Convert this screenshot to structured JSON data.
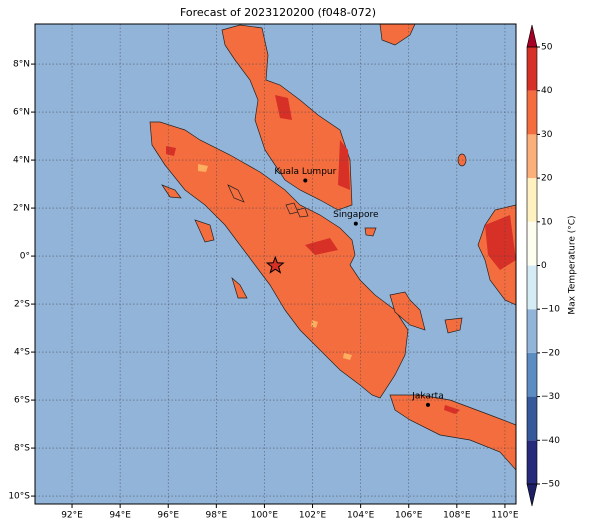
{
  "title": "Forecast of 2023120200 (f048-072)",
  "map": {
    "xlim": [
      90.46,
      110.46
    ],
    "ylim": [
      -10.33,
      9.67
    ],
    "ocean_color": "#92b4d8",
    "grid": true,
    "xticks": [
      {
        "value": 92,
        "label": "92°E"
      },
      {
        "value": 94,
        "label": "94°E"
      },
      {
        "value": 96,
        "label": "96°E"
      },
      {
        "value": 98,
        "label": "98°E"
      },
      {
        "value": 100,
        "label": "100°E"
      },
      {
        "value": 102,
        "label": "102°E"
      },
      {
        "value": 104,
        "label": "104°E"
      },
      {
        "value": 106,
        "label": "106°E"
      },
      {
        "value": 108,
        "label": "108°E"
      },
      {
        "value": 110,
        "label": "110°E"
      }
    ],
    "yticks": [
      {
        "value": 8,
        "label": "8°N"
      },
      {
        "value": 6,
        "label": "6°N"
      },
      {
        "value": 4,
        "label": "4°N"
      },
      {
        "value": 2,
        "label": "2°N"
      },
      {
        "value": 0,
        "label": "0°"
      },
      {
        "value": -2,
        "label": "2°S"
      },
      {
        "value": -4,
        "label": "4°S"
      },
      {
        "value": -6,
        "label": "6°S"
      },
      {
        "value": -8,
        "label": "8°S"
      },
      {
        "value": -10,
        "label": "10°S"
      }
    ],
    "cities": [
      {
        "name": "Kuala Lumpur",
        "lon": 101.7,
        "lat": 3.15
      },
      {
        "name": "Singapore",
        "lon": 103.8,
        "lat": 1.35
      },
      {
        "name": "Jakarta",
        "lon": 106.8,
        "lat": -6.2
      }
    ],
    "marker": {
      "lon": 100.45,
      "lat": -0.4,
      "color": "#d73027"
    }
  },
  "colorbar": {
    "label": "Max Temperature (°C)",
    "ticks": [
      {
        "value": -50,
        "label": "−50"
      },
      {
        "value": -40,
        "label": "−40"
      },
      {
        "value": -30,
        "label": "−30"
      },
      {
        "value": -20,
        "label": "−20"
      },
      {
        "value": -10,
        "label": "−10"
      },
      0,
      10,
      20,
      30,
      40,
      50
    ],
    "colors": [
      "#252a7a",
      "#355a9c",
      "#5b8cc2",
      "#92b4d8",
      "#d6ecf4",
      "#fdfdf0",
      "#fff2c0",
      "#fbb07a",
      "#f36d3e",
      "#d73027"
    ],
    "under_color": "#1c1f66",
    "over_color": "#a50026"
  }
}
